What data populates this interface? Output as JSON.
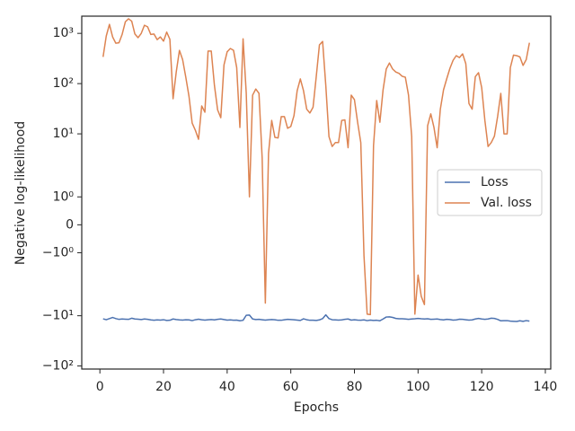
{
  "chart_data": {
    "type": "line",
    "x_label": "Epochs",
    "y_label": "Negative log-likelihood",
    "yscale": "symlog",
    "linthresh": 2,
    "xlim": [
      -5.7,
      141.7
    ],
    "xticks": [
      0,
      20,
      40,
      60,
      80,
      100,
      120,
      140
    ],
    "ylim": [
      -115,
      2200
    ],
    "yticks": [
      {
        "value": -100,
        "label": "−10²"
      },
      {
        "value": -10,
        "label": "−10¹"
      },
      {
        "value": -1,
        "label": "−10⁰"
      },
      0,
      {
        "value": 1,
        "label": "10⁰"
      },
      {
        "value": 10,
        "label": "10¹"
      },
      {
        "value": 100,
        "label": "10²"
      },
      {
        "value": 1000,
        "label": "10³"
      }
    ],
    "legend": "center right",
    "x": [
      1,
      2,
      3,
      4,
      5,
      6,
      7,
      8,
      9,
      10,
      11,
      12,
      13,
      14,
      15,
      16,
      17,
      18,
      19,
      20,
      21,
      22,
      23,
      24,
      25,
      26,
      27,
      28,
      29,
      30,
      31,
      32,
      33,
      34,
      35,
      36,
      37,
      38,
      39,
      40,
      41,
      42,
      43,
      44,
      45,
      46,
      47,
      48,
      49,
      50,
      51,
      52,
      53,
      54,
      55,
      56,
      57,
      58,
      59,
      60,
      61,
      62,
      63,
      64,
      65,
      66,
      67,
      68,
      69,
      70,
      71,
      72,
      73,
      74,
      75,
      76,
      77,
      78,
      79,
      80,
      81,
      82,
      83,
      84,
      85,
      86,
      87,
      88,
      89,
      90,
      91,
      92,
      93,
      94,
      95,
      96,
      97,
      98,
      99,
      100,
      101,
      102,
      103,
      104,
      105,
      106,
      107,
      108,
      109,
      110,
      111,
      112,
      113,
      114,
      115,
      116,
      117,
      118,
      119,
      120,
      121,
      122,
      123,
      124,
      125,
      126,
      127,
      128,
      129,
      130,
      131,
      132,
      133,
      134,
      135
    ],
    "series": [
      {
        "name": "Loss",
        "color": "#4c72b0",
        "values": [
          -11.5,
          -12,
          -11.4,
          -10.8,
          -11.4,
          -11.8,
          -11.6,
          -11.7,
          -11.8,
          -11.2,
          -11.6,
          -11.7,
          -11.9,
          -11.6,
          -11.8,
          -12.1,
          -12.3,
          -12.1,
          -12.2,
          -12,
          -12.4,
          -12.3,
          -11.6,
          -11.9,
          -12.1,
          -12.2,
          -12,
          -12.1,
          -12.5,
          -12,
          -11.7,
          -12,
          -12.2,
          -12,
          -11.9,
          -12.1,
          -11.8,
          -11.6,
          -11.9,
          -12.2,
          -12.1,
          -12.3,
          -12.2,
          -12.6,
          -12.3,
          -9.8,
          -9.7,
          -11.6,
          -11.9,
          -11.8,
          -12,
          -12.2,
          -12,
          -11.9,
          -12,
          -12.3,
          -12.3,
          -12,
          -11.8,
          -11.9,
          -12,
          -12.2,
          -12.4,
          -11.5,
          -12,
          -12.3,
          -12.3,
          -12.4,
          -12.1,
          -11.4,
          -9.6,
          -11.4,
          -12,
          -12.1,
          -12.2,
          -12.1,
          -11.8,
          -11.6,
          -12.2,
          -12,
          -12.2,
          -12.3,
          -12.1,
          -12.5,
          -12.2,
          -12.4,
          -12.3,
          -12.6,
          -11.6,
          -10.6,
          -10.5,
          -10.8,
          -11.3,
          -11.5,
          -11.5,
          -11.6,
          -11.8,
          -11.6,
          -11.5,
          -11.3,
          -11.5,
          -11.6,
          -11.5,
          -11.8,
          -11.7,
          -11.6,
          -11.9,
          -12.1,
          -11.8,
          -11.9,
          -12.2,
          -12.1,
          -11.7,
          -11.8,
          -12,
          -12.2,
          -12.1,
          -11.6,
          -11.3,
          -11.6,
          -11.8,
          -11.6,
          -11.2,
          -11.3,
          -11.8,
          -12.6,
          -12.5,
          -12.5,
          -12.8,
          -12.9,
          -13,
          -12.6,
          -12.9,
          -12.5,
          -12.8
        ]
      },
      {
        "name": "Val. loss",
        "color": "#dd8452",
        "values": [
          340,
          885,
          1510,
          850,
          637,
          650,
          957,
          1700,
          1950,
          1750,
          970,
          820,
          1000,
          1450,
          1350,
          950,
          970,
          750,
          850,
          700,
          1060,
          760,
          50,
          171,
          458,
          300,
          134,
          56,
          16.4,
          11.8,
          7.8,
          36,
          27,
          445,
          445,
          92,
          30,
          21,
          235,
          430,
          500,
          460,
          208,
          13.4,
          780,
          64,
          1.0,
          59,
          78,
          64,
          3.3,
          -5.6,
          4.1,
          18.5,
          8.5,
          8.3,
          22,
          22,
          12.9,
          14,
          23,
          72,
          124,
          72,
          31,
          26,
          34,
          138,
          590,
          690,
          92,
          8.8,
          5.6,
          6.7,
          6.7,
          18.5,
          19,
          5.3,
          59,
          48,
          17,
          6.7,
          -1.1,
          -9.3,
          -9.5,
          5.8,
          46,
          17,
          75,
          195,
          257,
          195,
          170,
          160,
          140,
          134,
          59,
          8.8,
          -9.3,
          -1.8,
          -4.1,
          -6,
          14.5,
          25,
          13.4,
          5.3,
          31,
          75,
          124,
          200,
          290,
          360,
          330,
          390,
          250,
          40,
          31,
          138,
          165,
          83,
          18.5,
          5.6,
          6.7,
          9,
          22,
          64,
          10,
          10,
          208,
          370,
          360,
          340,
          230,
          300,
          650
        ]
      }
    ]
  }
}
